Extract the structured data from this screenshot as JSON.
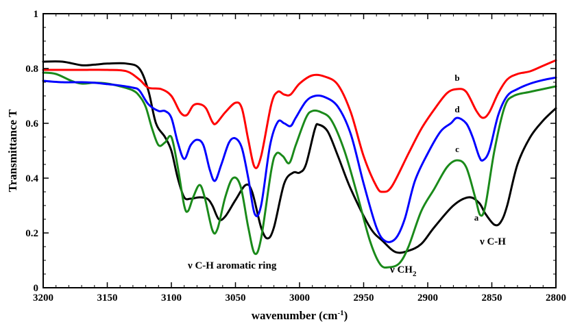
{
  "chart_data": {
    "type": "line",
    "title": "",
    "xlabel": "wavenumber (cm⁻¹)",
    "xlabel_main": "wavenumber (cm",
    "xlabel_sup": "-1",
    "xlabel_close": ")",
    "ylabel": "Transmittance T",
    "xlim": [
      3200,
      2800
    ],
    "ylim": [
      0,
      1
    ],
    "x_reversed": true,
    "grid": false,
    "x_ticks": [
      3200,
      3150,
      3100,
      3050,
      3000,
      2950,
      2900,
      2850,
      2800
    ],
    "y_ticks": [
      0,
      0.2,
      0.4,
      0.6,
      0.8,
      1
    ],
    "x_tick_labels": [
      "3200",
      "3150",
      "3100",
      "3050",
      "3000",
      "2950",
      "2900",
      "2850",
      "2800"
    ],
    "y_tick_labels": [
      "0",
      "0.2",
      "0.4",
      "0.6",
      "0.8",
      "1"
    ],
    "series": [
      {
        "name": "a",
        "color": "#000000",
        "points": [
          [
            3200,
            0.825
          ],
          [
            3185,
            0.825
          ],
          [
            3170,
            0.812
          ],
          [
            3160,
            0.814
          ],
          [
            3150,
            0.818
          ],
          [
            3135,
            0.818
          ],
          [
            3125,
            0.8
          ],
          [
            3118,
            0.72
          ],
          [
            3112,
            0.6
          ],
          [
            3105,
            0.55
          ],
          [
            3100,
            0.5
          ],
          [
            3095,
            0.4
          ],
          [
            3090,
            0.33
          ],
          [
            3085,
            0.325
          ],
          [
            3078,
            0.33
          ],
          [
            3072,
            0.325
          ],
          [
            3068,
            0.3
          ],
          [
            3063,
            0.25
          ],
          [
            3058,
            0.26
          ],
          [
            3050,
            0.32
          ],
          [
            3042,
            0.375
          ],
          [
            3037,
            0.35
          ],
          [
            3030,
            0.22
          ],
          [
            3025,
            0.18
          ],
          [
            3020,
            0.22
          ],
          [
            3012,
            0.38
          ],
          [
            3005,
            0.42
          ],
          [
            3000,
            0.42
          ],
          [
            2995,
            0.45
          ],
          [
            2988,
            0.58
          ],
          [
            2985,
            0.595
          ],
          [
            2978,
            0.57
          ],
          [
            2970,
            0.48
          ],
          [
            2960,
            0.36
          ],
          [
            2945,
            0.22
          ],
          [
            2935,
            0.17
          ],
          [
            2925,
            0.13
          ],
          [
            2915,
            0.135
          ],
          [
            2905,
            0.16
          ],
          [
            2895,
            0.22
          ],
          [
            2880,
            0.3
          ],
          [
            2868,
            0.33
          ],
          [
            2860,
            0.31
          ],
          [
            2855,
            0.27
          ],
          [
            2848,
            0.23
          ],
          [
            2843,
            0.24
          ],
          [
            2838,
            0.3
          ],
          [
            2830,
            0.45
          ],
          [
            2820,
            0.55
          ],
          [
            2810,
            0.61
          ],
          [
            2800,
            0.655
          ]
        ]
      },
      {
        "name": "b",
        "color": "#ff0000",
        "points": [
          [
            3200,
            0.795
          ],
          [
            3185,
            0.795
          ],
          [
            3170,
            0.795
          ],
          [
            3150,
            0.795
          ],
          [
            3135,
            0.79
          ],
          [
            3125,
            0.76
          ],
          [
            3118,
            0.73
          ],
          [
            3108,
            0.725
          ],
          [
            3100,
            0.7
          ],
          [
            3093,
            0.64
          ],
          [
            3088,
            0.63
          ],
          [
            3083,
            0.665
          ],
          [
            3078,
            0.67
          ],
          [
            3073,
            0.655
          ],
          [
            3068,
            0.605
          ],
          [
            3065,
            0.6
          ],
          [
            3058,
            0.64
          ],
          [
            3050,
            0.675
          ],
          [
            3045,
            0.655
          ],
          [
            3040,
            0.54
          ],
          [
            3035,
            0.44
          ],
          [
            3030,
            0.48
          ],
          [
            3022,
            0.67
          ],
          [
            3017,
            0.715
          ],
          [
            3012,
            0.705
          ],
          [
            3007,
            0.705
          ],
          [
            3000,
            0.745
          ],
          [
            2990,
            0.775
          ],
          [
            2980,
            0.77
          ],
          [
            2970,
            0.74
          ],
          [
            2960,
            0.64
          ],
          [
            2950,
            0.48
          ],
          [
            2940,
            0.37
          ],
          [
            2935,
            0.35
          ],
          [
            2928,
            0.37
          ],
          [
            2915,
            0.49
          ],
          [
            2905,
            0.58
          ],
          [
            2895,
            0.65
          ],
          [
            2885,
            0.71
          ],
          [
            2877,
            0.725
          ],
          [
            2870,
            0.715
          ],
          [
            2862,
            0.645
          ],
          [
            2857,
            0.62
          ],
          [
            2852,
            0.64
          ],
          [
            2845,
            0.71
          ],
          [
            2838,
            0.76
          ],
          [
            2830,
            0.78
          ],
          [
            2820,
            0.79
          ],
          [
            2810,
            0.81
          ],
          [
            2800,
            0.83
          ]
        ]
      },
      {
        "name": "c",
        "color": "#1a8a1a",
        "points": [
          [
            3200,
            0.785
          ],
          [
            3190,
            0.78
          ],
          [
            3178,
            0.755
          ],
          [
            3170,
            0.745
          ],
          [
            3160,
            0.748
          ],
          [
            3150,
            0.745
          ],
          [
            3140,
            0.735
          ],
          [
            3130,
            0.72
          ],
          [
            3125,
            0.7
          ],
          [
            3120,
            0.66
          ],
          [
            3115,
            0.58
          ],
          [
            3110,
            0.52
          ],
          [
            3105,
            0.53
          ],
          [
            3100,
            0.55
          ],
          [
            3095,
            0.44
          ],
          [
            3090,
            0.3
          ],
          [
            3087,
            0.28
          ],
          [
            3083,
            0.33
          ],
          [
            3078,
            0.375
          ],
          [
            3074,
            0.33
          ],
          [
            3068,
            0.21
          ],
          [
            3064,
            0.215
          ],
          [
            3058,
            0.33
          ],
          [
            3052,
            0.4
          ],
          [
            3046,
            0.37
          ],
          [
            3040,
            0.22
          ],
          [
            3035,
            0.125
          ],
          [
            3030,
            0.18
          ],
          [
            3022,
            0.43
          ],
          [
            3018,
            0.49
          ],
          [
            3013,
            0.48
          ],
          [
            3008,
            0.455
          ],
          [
            3003,
            0.52
          ],
          [
            2995,
            0.62
          ],
          [
            2990,
            0.645
          ],
          [
            2983,
            0.64
          ],
          [
            2975,
            0.61
          ],
          [
            2965,
            0.5
          ],
          [
            2955,
            0.34
          ],
          [
            2945,
            0.17
          ],
          [
            2937,
            0.085
          ],
          [
            2930,
            0.075
          ],
          [
            2922,
            0.09
          ],
          [
            2915,
            0.15
          ],
          [
            2905,
            0.28
          ],
          [
            2895,
            0.36
          ],
          [
            2885,
            0.44
          ],
          [
            2877,
            0.465
          ],
          [
            2870,
            0.44
          ],
          [
            2863,
            0.33
          ],
          [
            2859,
            0.265
          ],
          [
            2855,
            0.3
          ],
          [
            2848,
            0.5
          ],
          [
            2840,
            0.66
          ],
          [
            2833,
            0.7
          ],
          [
            2820,
            0.715
          ],
          [
            2810,
            0.725
          ],
          [
            2800,
            0.735
          ]
        ]
      },
      {
        "name": "d",
        "color": "#0000ff",
        "points": [
          [
            3200,
            0.755
          ],
          [
            3185,
            0.75
          ],
          [
            3170,
            0.75
          ],
          [
            3160,
            0.748
          ],
          [
            3150,
            0.743
          ],
          [
            3140,
            0.738
          ],
          [
            3130,
            0.73
          ],
          [
            3125,
            0.72
          ],
          [
            3118,
            0.67
          ],
          [
            3110,
            0.645
          ],
          [
            3105,
            0.645
          ],
          [
            3100,
            0.62
          ],
          [
            3095,
            0.53
          ],
          [
            3090,
            0.47
          ],
          [
            3085,
            0.52
          ],
          [
            3080,
            0.54
          ],
          [
            3075,
            0.52
          ],
          [
            3070,
            0.43
          ],
          [
            3066,
            0.39
          ],
          [
            3061,
            0.45
          ],
          [
            3055,
            0.53
          ],
          [
            3050,
            0.545
          ],
          [
            3045,
            0.51
          ],
          [
            3040,
            0.4
          ],
          [
            3035,
            0.27
          ],
          [
            3030,
            0.3
          ],
          [
            3023,
            0.52
          ],
          [
            3017,
            0.605
          ],
          [
            3012,
            0.6
          ],
          [
            3007,
            0.59
          ],
          [
            3003,
            0.62
          ],
          [
            2995,
            0.68
          ],
          [
            2988,
            0.7
          ],
          [
            2980,
            0.695
          ],
          [
            2970,
            0.66
          ],
          [
            2960,
            0.56
          ],
          [
            2950,
            0.38
          ],
          [
            2940,
            0.22
          ],
          [
            2933,
            0.17
          ],
          [
            2925,
            0.18
          ],
          [
            2918,
            0.25
          ],
          [
            2910,
            0.39
          ],
          [
            2900,
            0.49
          ],
          [
            2890,
            0.57
          ],
          [
            2882,
            0.6
          ],
          [
            2877,
            0.62
          ],
          [
            2870,
            0.6
          ],
          [
            2865,
            0.55
          ],
          [
            2860,
            0.48
          ],
          [
            2857,
            0.465
          ],
          [
            2852,
            0.5
          ],
          [
            2845,
            0.63
          ],
          [
            2838,
            0.7
          ],
          [
            2830,
            0.725
          ],
          [
            2820,
            0.745
          ],
          [
            2810,
            0.758
          ],
          [
            2800,
            0.767
          ]
        ]
      }
    ],
    "annotations": [
      {
        "id": "label-a",
        "text": "a",
        "x": 2862,
        "y": 0.245
      },
      {
        "id": "label-b",
        "text": "b",
        "x": 2877,
        "y": 0.755
      },
      {
        "id": "label-c",
        "text": "c",
        "x": 2877,
        "y": 0.495
      },
      {
        "id": "label-d",
        "text": "d",
        "x": 2877,
        "y": 0.64
      }
    ],
    "band_labels": {
      "aromatic": "ν C-H aromatic ring",
      "ch2_main": "ν CH",
      "ch2_sub": "2",
      "ch": "ν C-H"
    }
  }
}
